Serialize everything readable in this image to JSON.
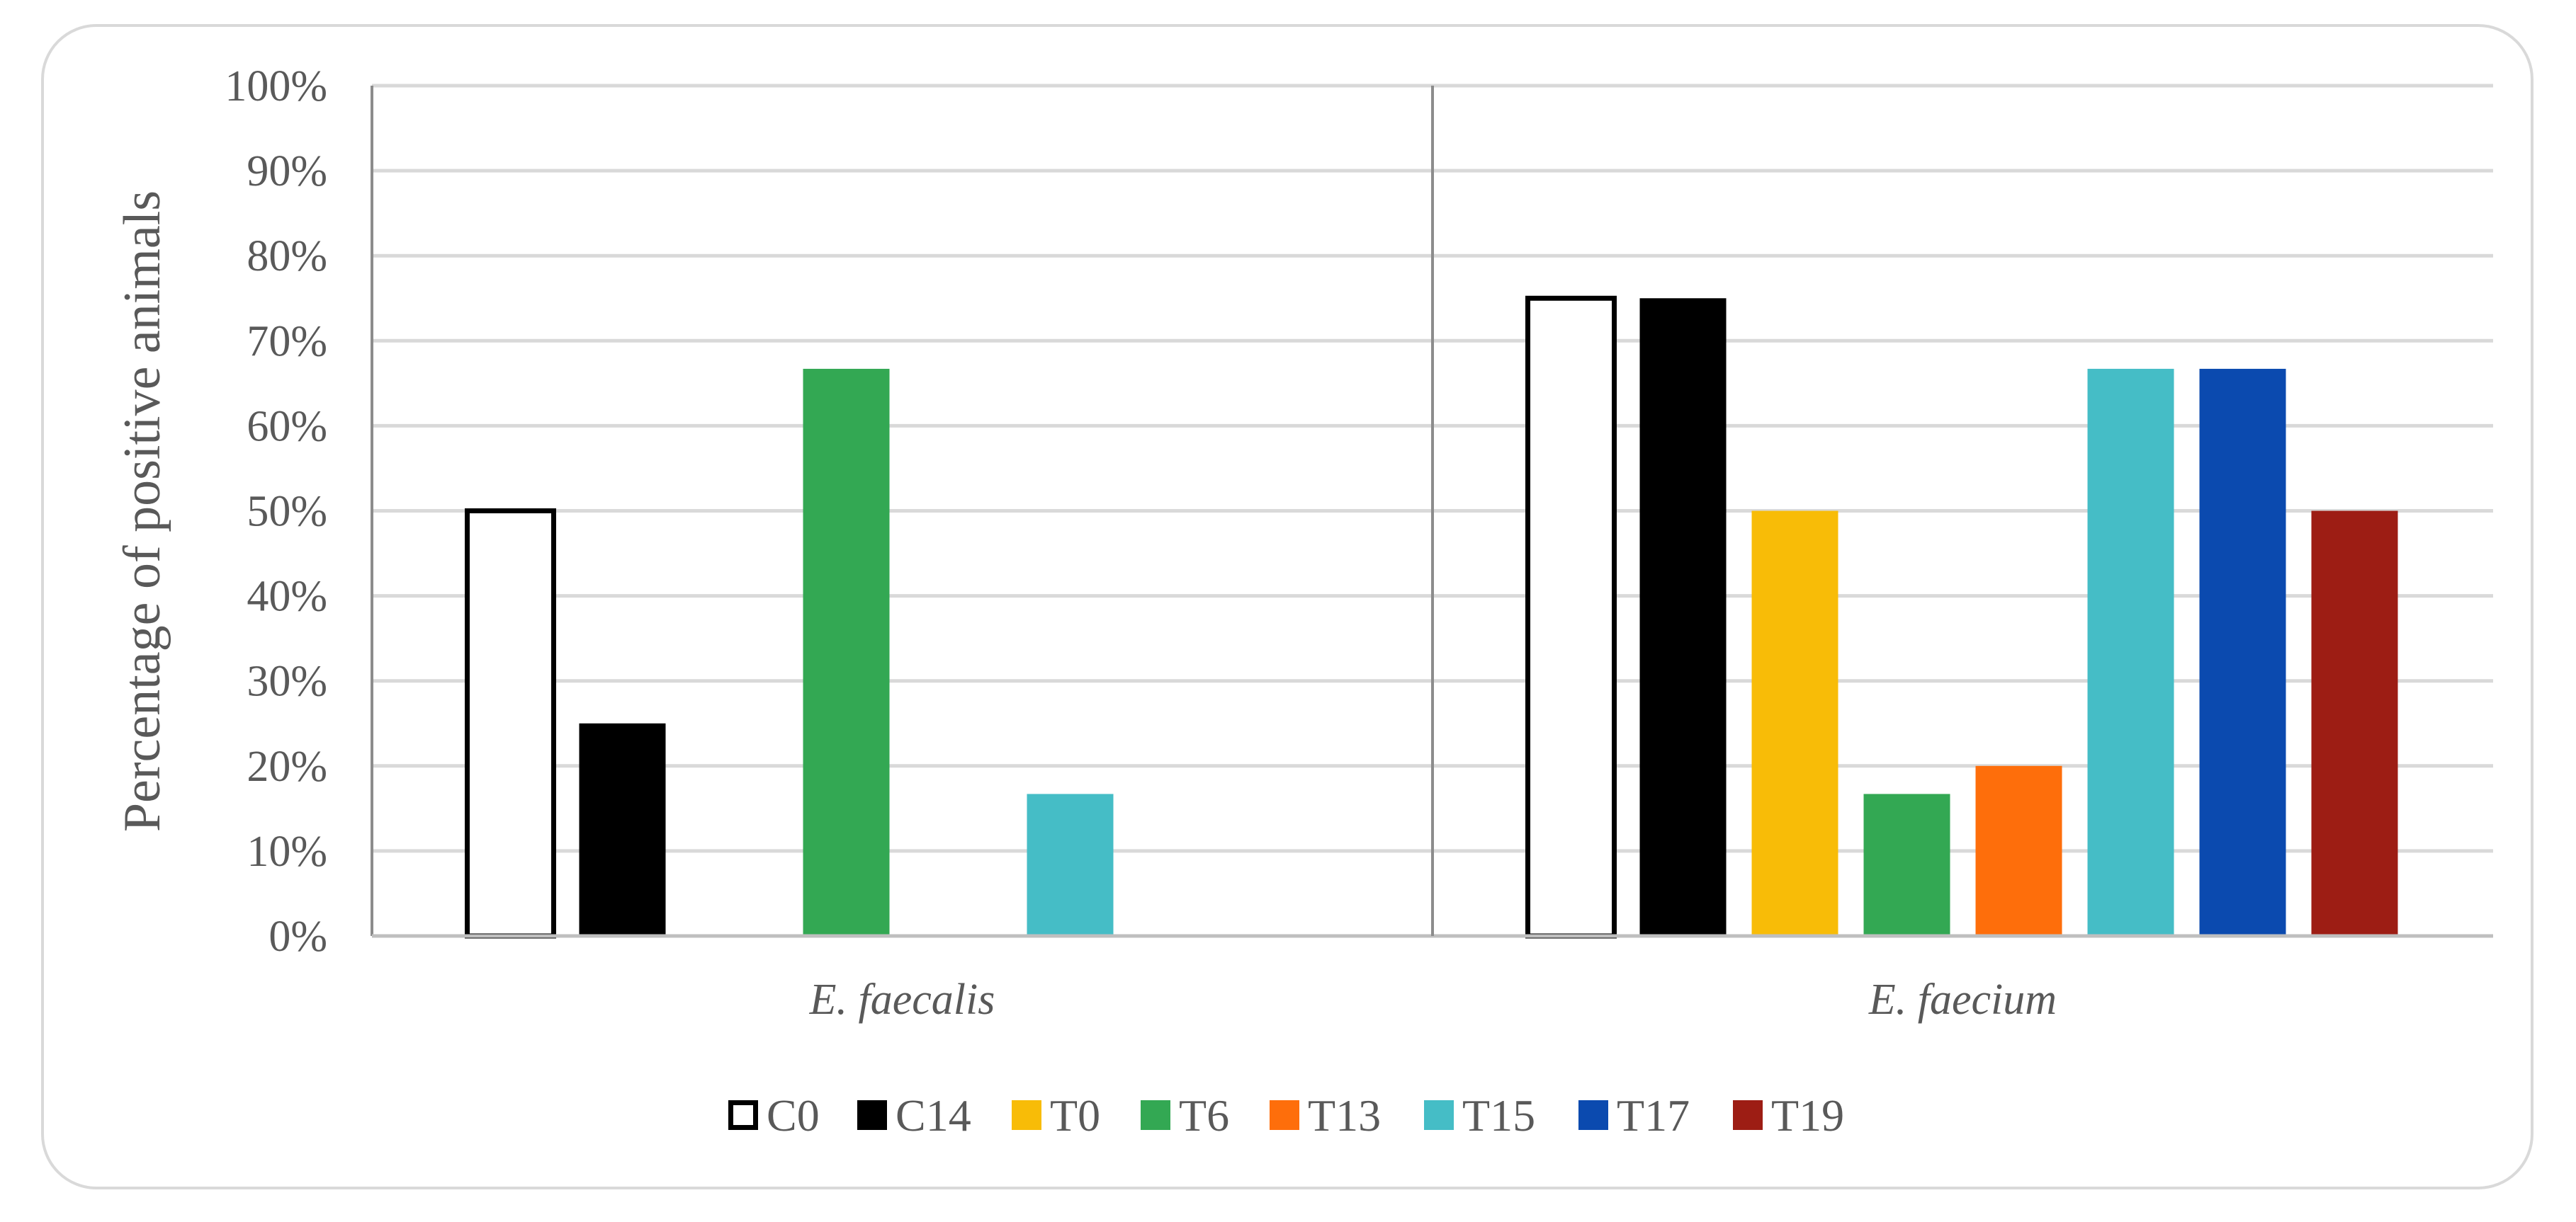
{
  "chart_data": {
    "type": "bar",
    "categories": [
      "E. faecalis",
      "E. faecium"
    ],
    "series": [
      {
        "name": "C0",
        "values": [
          50,
          75
        ],
        "color": "#ffffff",
        "stroke": "#000000"
      },
      {
        "name": "C14",
        "values": [
          25,
          75
        ],
        "color": "#000000"
      },
      {
        "name": "T0",
        "values": [
          0,
          50
        ],
        "color": "#f8bc07"
      },
      {
        "name": "T6",
        "values": [
          66.7,
          16.7
        ],
        "color": "#33a853"
      },
      {
        "name": "T13",
        "values": [
          0,
          20
        ],
        "color": "#fe6e0b"
      },
      {
        "name": "T15",
        "values": [
          16.7,
          66.7
        ],
        "color": "#45bdc6"
      },
      {
        "name": "T17",
        "values": [
          0,
          66.7
        ],
        "color": "#0b4aaf"
      },
      {
        "name": "T19",
        "values": [
          0,
          50
        ],
        "color": "#9d1d14"
      }
    ],
    "ylabel": "Percentage of positive animals",
    "xlabel": "",
    "title": "",
    "ylim": [
      0,
      100
    ],
    "yticks": [
      "0%",
      "10%",
      "20%",
      "30%",
      "40%",
      "50%",
      "60%",
      "70%",
      "80%",
      "90%",
      "100%"
    ],
    "grid": true,
    "legend_position": "bottom"
  }
}
